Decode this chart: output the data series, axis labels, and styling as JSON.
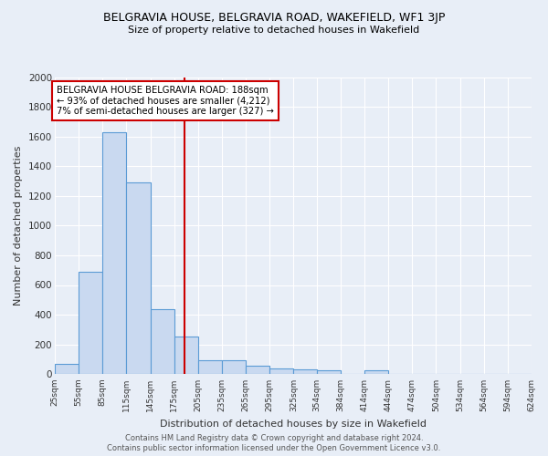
{
  "title1": "BELGRAVIA HOUSE, BELGRAVIA ROAD, WAKEFIELD, WF1 3JP",
  "title2": "Size of property relative to detached houses in Wakefield",
  "xlabel": "Distribution of detached houses by size in Wakefield",
  "ylabel": "Number of detached properties",
  "bin_edges": [
    25,
    55,
    85,
    115,
    145,
    175,
    205,
    235,
    265,
    295,
    325,
    354,
    384,
    414,
    444,
    474,
    504,
    534,
    564,
    594,
    624
  ],
  "bar_heights": [
    70,
    690,
    1630,
    1290,
    440,
    255,
    95,
    90,
    55,
    40,
    30,
    25,
    0,
    25,
    0,
    0,
    0,
    0,
    0,
    0
  ],
  "bar_color": "#c9d9f0",
  "bar_edge_color": "#5b9bd5",
  "property_size": 188,
  "vline_color": "#cc0000",
  "annotation_line1": "BELGRAVIA HOUSE BELGRAVIA ROAD: 188sqm",
  "annotation_line2": "← 93% of detached houses are smaller (4,212)",
  "annotation_line3": "7% of semi-detached houses are larger (327) →",
  "annotation_box_color": "white",
  "annotation_box_edge_color": "#cc0000",
  "ylim": [
    0,
    2000
  ],
  "yticks": [
    0,
    200,
    400,
    600,
    800,
    1000,
    1200,
    1400,
    1600,
    1800,
    2000
  ],
  "footer1": "Contains HM Land Registry data © Crown copyright and database right 2024.",
  "footer2": "Contains public sector information licensed under the Open Government Licence v3.0.",
  "background_color": "#e8eef7",
  "grid_color": "white"
}
